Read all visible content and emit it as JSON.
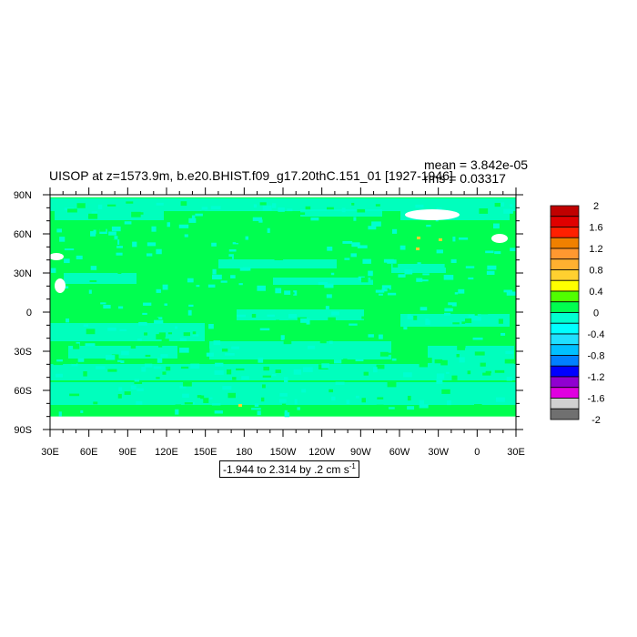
{
  "chart_data": {
    "type": "heatmap",
    "title": "UISOP at z=1573.9m, b.e20.BHIST.f09_g17.20thC.151_01 [1927-1946]",
    "stats": {
      "mean": "mean = 3.842e-05",
      "rms": "rms = 0.03317"
    },
    "contour_info": "-1.944 to 2.314 by .2 cm s",
    "contour_info_exponent": "-1",
    "x_axis": {
      "range": [
        30,
        390
      ],
      "tick_labels": [
        "30E",
        "60E",
        "90E",
        "120E",
        "150E",
        "180",
        "150W",
        "120W",
        "90W",
        "60W",
        "30W",
        "0",
        "30E"
      ]
    },
    "y_axis": {
      "range": [
        -90,
        90
      ],
      "tick_labels": [
        "90S",
        "60S",
        "30S",
        "0",
        "30N",
        "60N",
        "90N"
      ]
    },
    "colorbar": {
      "levels": [
        -2,
        -1.8,
        -1.6,
        -1.4,
        -1.2,
        -1,
        -0.8,
        -0.6,
        -0.4,
        -0.2,
        0,
        0.2,
        0.4,
        0.6,
        0.8,
        1,
        1.2,
        1.4,
        1.6,
        1.8,
        2
      ],
      "labels": [
        "2",
        "1.6",
        "1.2",
        "0.8",
        "0.4",
        "0",
        "-0.4",
        "-0.8",
        "-1.2",
        "-1.6",
        "-2"
      ],
      "colors_top_to_bottom": [
        "#c00000",
        "#e00000",
        "#ff2000",
        "#f08000",
        "#ff9830",
        "#ffb030",
        "#ffd030",
        "#ffff00",
        "#50ff00",
        "#00ff50",
        "#00ffd0",
        "#00ffff",
        "#20e0ff",
        "#00c0ff",
        "#0080ff",
        "#0000ff",
        "#9000d0",
        "#e000e0",
        "#d0d0d0",
        "#707070"
      ]
    },
    "dominant_colors": {
      "near_zero_positive": "#00ff50",
      "near_zero_negative": "#00ffd0",
      "missing": "#ffffff"
    }
  }
}
